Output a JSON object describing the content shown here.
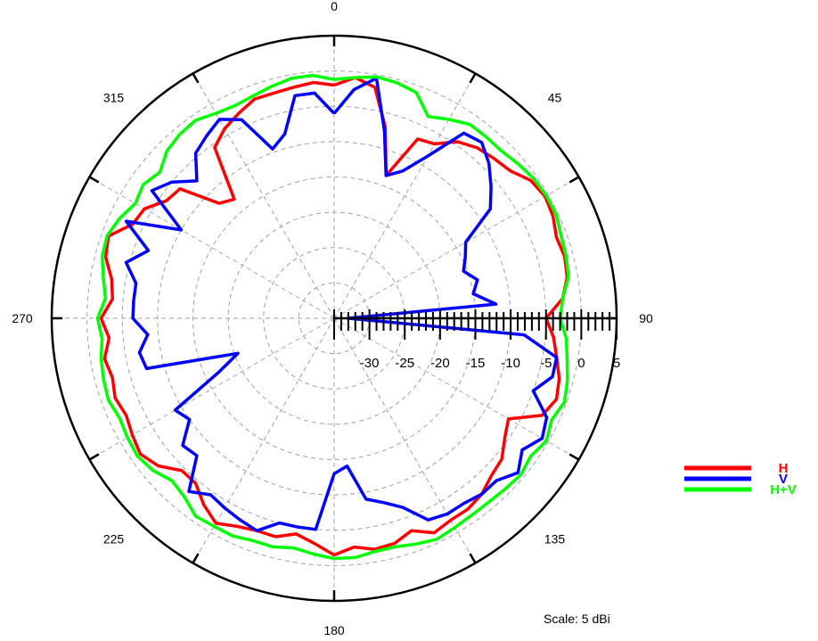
{
  "chart_data": {
    "type": "polar-line",
    "unit": "dBi",
    "radial_range": [
      -35,
      5
    ],
    "radial_ticks": [
      -30,
      -25,
      -20,
      -15,
      -10,
      -5,
      0,
      5
    ],
    "angle_labels": [
      "0",
      "45",
      "90",
      "135",
      "180",
      "225",
      "270",
      "315"
    ],
    "angle_label_values": [
      0,
      45,
      90,
      135,
      180,
      225,
      270,
      315
    ],
    "grid": true,
    "scale_note": "Scale: 5 dBi",
    "legend_position": "bottom-right",
    "series": [
      {
        "name": "H",
        "color": "#ff0000",
        "points": [
          [
            0,
            -2.0
          ],
          [
            5,
            -0.8
          ],
          [
            10,
            -1.8
          ],
          [
            15,
            -7.0
          ],
          [
            20,
            -13.5
          ],
          [
            25,
            -7.0
          ],
          [
            30,
            -6.5
          ],
          [
            35,
            -4.5
          ],
          [
            40,
            -3.5
          ],
          [
            45,
            -3.0
          ],
          [
            50,
            -2.5
          ],
          [
            55,
            -1.0
          ],
          [
            60,
            -0.5
          ],
          [
            65,
            -0.8
          ],
          [
            70,
            -1.5
          ],
          [
            75,
            -1.2
          ],
          [
            80,
            -1.5
          ],
          [
            85,
            -2.5
          ],
          [
            90,
            -5.0
          ],
          [
            95,
            -3.8
          ],
          [
            100,
            -3.0
          ],
          [
            105,
            -2.0
          ],
          [
            110,
            -1.5
          ],
          [
            115,
            -2.5
          ],
          [
            120,
            -6.5
          ],
          [
            125,
            -5.5
          ],
          [
            130,
            -4.0
          ],
          [
            135,
            -3.5
          ],
          [
            140,
            -2.5
          ],
          [
            145,
            -2.0
          ],
          [
            150,
            -2.0
          ],
          [
            155,
            -1.5
          ],
          [
            160,
            -3.0
          ],
          [
            165,
            -2.0
          ],
          [
            170,
            -1.8
          ],
          [
            175,
            -2.5
          ],
          [
            180,
            -1.5
          ],
          [
            185,
            -3.0
          ],
          [
            190,
            -4.0
          ],
          [
            195,
            -3.0
          ],
          [
            200,
            -3.0
          ],
          [
            205,
            -2.5
          ],
          [
            210,
            -1.5
          ],
          [
            215,
            -2.8
          ],
          [
            220,
            -4.5
          ],
          [
            225,
            -4.5
          ],
          [
            230,
            -2.5
          ],
          [
            235,
            -1.5
          ],
          [
            240,
            -2.0
          ],
          [
            245,
            -2.5
          ],
          [
            250,
            -2.0
          ],
          [
            255,
            -2.5
          ],
          [
            260,
            -2.0
          ],
          [
            265,
            -3.0
          ],
          [
            270,
            -2.0
          ],
          [
            275,
            -3.5
          ],
          [
            280,
            -3.0
          ],
          [
            285,
            -1.5
          ],
          [
            290,
            -1.0
          ],
          [
            295,
            -3.5
          ],
          [
            300,
            -4.0
          ],
          [
            305,
            -6.0
          ],
          [
            310,
            -6.5
          ],
          [
            315,
            -12.0
          ],
          [
            320,
            -13.0
          ],
          [
            325,
            -5.5
          ],
          [
            330,
            -4.0
          ],
          [
            335,
            -3.0
          ],
          [
            340,
            -2.0
          ],
          [
            345,
            -2.0
          ],
          [
            350,
            -1.8
          ],
          [
            355,
            -1.5
          ]
        ]
      },
      {
        "name": "V",
        "color": "#0000ff",
        "points": [
          [
            0,
            -6.0
          ],
          [
            5,
            -2.5
          ],
          [
            10,
            -0.5
          ],
          [
            15,
            -7.5
          ],
          [
            20,
            -13.5
          ],
          [
            25,
            -12.0
          ],
          [
            30,
            -8.5
          ],
          [
            35,
            -3.0
          ],
          [
            40,
            -2.5
          ],
          [
            45,
            -4.0
          ],
          [
            50,
            -6.0
          ],
          [
            55,
            -8.0
          ],
          [
            60,
            -13.5
          ],
          [
            65,
            -14.5
          ],
          [
            70,
            -15.5
          ],
          [
            75,
            -14.0
          ],
          [
            80,
            -15.0
          ],
          [
            85,
            -12.0
          ],
          [
            90,
            -33.0
          ],
          [
            95,
            -8.0
          ],
          [
            100,
            -3.0
          ],
          [
            105,
            -3.0
          ],
          [
            110,
            -5.0
          ],
          [
            115,
            -1.8
          ],
          [
            120,
            -1.0
          ],
          [
            125,
            -2.5
          ],
          [
            130,
            -1.0
          ],
          [
            135,
            -2.5
          ],
          [
            140,
            -2.5
          ],
          [
            145,
            -3.0
          ],
          [
            150,
            -3.0
          ],
          [
            155,
            -3.5
          ],
          [
            160,
            -6.5
          ],
          [
            165,
            -8.0
          ],
          [
            170,
            -9.0
          ],
          [
            175,
            -14.0
          ],
          [
            180,
            -13.0
          ],
          [
            185,
            -5.0
          ],
          [
            190,
            -5.0
          ],
          [
            195,
            -5.0
          ],
          [
            200,
            -3.0
          ],
          [
            205,
            -3.5
          ],
          [
            210,
            -4.0
          ],
          [
            215,
            -4.5
          ],
          [
            220,
            -3.0
          ],
          [
            225,
            -7.5
          ],
          [
            230,
            -7.0
          ],
          [
            235,
            -10.0
          ],
          [
            240,
            -9.0
          ],
          [
            245,
            -17.0
          ],
          [
            250,
            -20.5
          ],
          [
            255,
            -7.5
          ],
          [
            260,
            -7.0
          ],
          [
            265,
            -8.5
          ],
          [
            270,
            -6.5
          ],
          [
            275,
            -6.5
          ],
          [
            280,
            -6.5
          ],
          [
            285,
            -4.5
          ],
          [
            290,
            -7.0
          ],
          [
            295,
            -2.5
          ],
          [
            300,
            -10.0
          ],
          [
            305,
            -3.5
          ],
          [
            310,
            -5.0
          ],
          [
            315,
            -7.5
          ],
          [
            320,
            -4.5
          ],
          [
            325,
            -3.5
          ],
          [
            330,
            -2.5
          ],
          [
            335,
            -4.0
          ],
          [
            340,
            -9.5
          ],
          [
            345,
            -8.0
          ],
          [
            350,
            -3.0
          ],
          [
            355,
            -3.0
          ]
        ]
      },
      {
        "name": "H+V",
        "color": "#00ff00",
        "points": [
          [
            0,
            -1.2
          ],
          [
            5,
            -0.8
          ],
          [
            10,
            -0.3
          ],
          [
            15,
            -0.5
          ],
          [
            20,
            -1.0
          ],
          [
            25,
            -3.5
          ],
          [
            30,
            -2.5
          ],
          [
            35,
            -1.5
          ],
          [
            40,
            -1.5
          ],
          [
            45,
            -1.5
          ],
          [
            50,
            -1.0
          ],
          [
            55,
            -0.5
          ],
          [
            60,
            -0.3
          ],
          [
            65,
            -0.3
          ],
          [
            70,
            -0.8
          ],
          [
            75,
            -1.0
          ],
          [
            80,
            -1.3
          ],
          [
            85,
            -2.5
          ],
          [
            90,
            -3.0
          ],
          [
            95,
            -2.0
          ],
          [
            100,
            -1.5
          ],
          [
            105,
            -0.8
          ],
          [
            110,
            -0.3
          ],
          [
            115,
            -1.0
          ],
          [
            120,
            -0.3
          ],
          [
            125,
            -1.0
          ],
          [
            130,
            -0.5
          ],
          [
            135,
            -0.8
          ],
          [
            140,
            -1.0
          ],
          [
            145,
            -1.0
          ],
          [
            150,
            -0.8
          ],
          [
            155,
            -0.5
          ],
          [
            160,
            -1.0
          ],
          [
            165,
            -1.5
          ],
          [
            170,
            -1.5
          ],
          [
            175,
            -1.0
          ],
          [
            180,
            -1.0
          ],
          [
            185,
            -1.5
          ],
          [
            190,
            -2.0
          ],
          [
            195,
            -1.5
          ],
          [
            200,
            -1.5
          ],
          [
            205,
            -1.0
          ],
          [
            210,
            -1.0
          ],
          [
            215,
            -0.8
          ],
          [
            220,
            -2.0
          ],
          [
            225,
            -2.5
          ],
          [
            230,
            -1.5
          ],
          [
            235,
            -1.0
          ],
          [
            240,
            -1.2
          ],
          [
            245,
            -1.5
          ],
          [
            250,
            -1.0
          ],
          [
            255,
            -1.2
          ],
          [
            260,
            -1.5
          ],
          [
            265,
            -2.0
          ],
          [
            270,
            -1.5
          ],
          [
            275,
            -2.5
          ],
          [
            280,
            -1.8
          ],
          [
            285,
            -1.0
          ],
          [
            290,
            -0.8
          ],
          [
            295,
            -1.5
          ],
          [
            300,
            -2.5
          ],
          [
            305,
            -2.0
          ],
          [
            310,
            -2.8
          ],
          [
            315,
            -1.5
          ],
          [
            320,
            -1.0
          ],
          [
            325,
            -0.8
          ],
          [
            330,
            -1.5
          ],
          [
            335,
            -1.8
          ],
          [
            340,
            -1.5
          ],
          [
            345,
            -1.0
          ],
          [
            350,
            -0.5
          ],
          [
            355,
            -0.5
          ]
        ]
      }
    ]
  }
}
